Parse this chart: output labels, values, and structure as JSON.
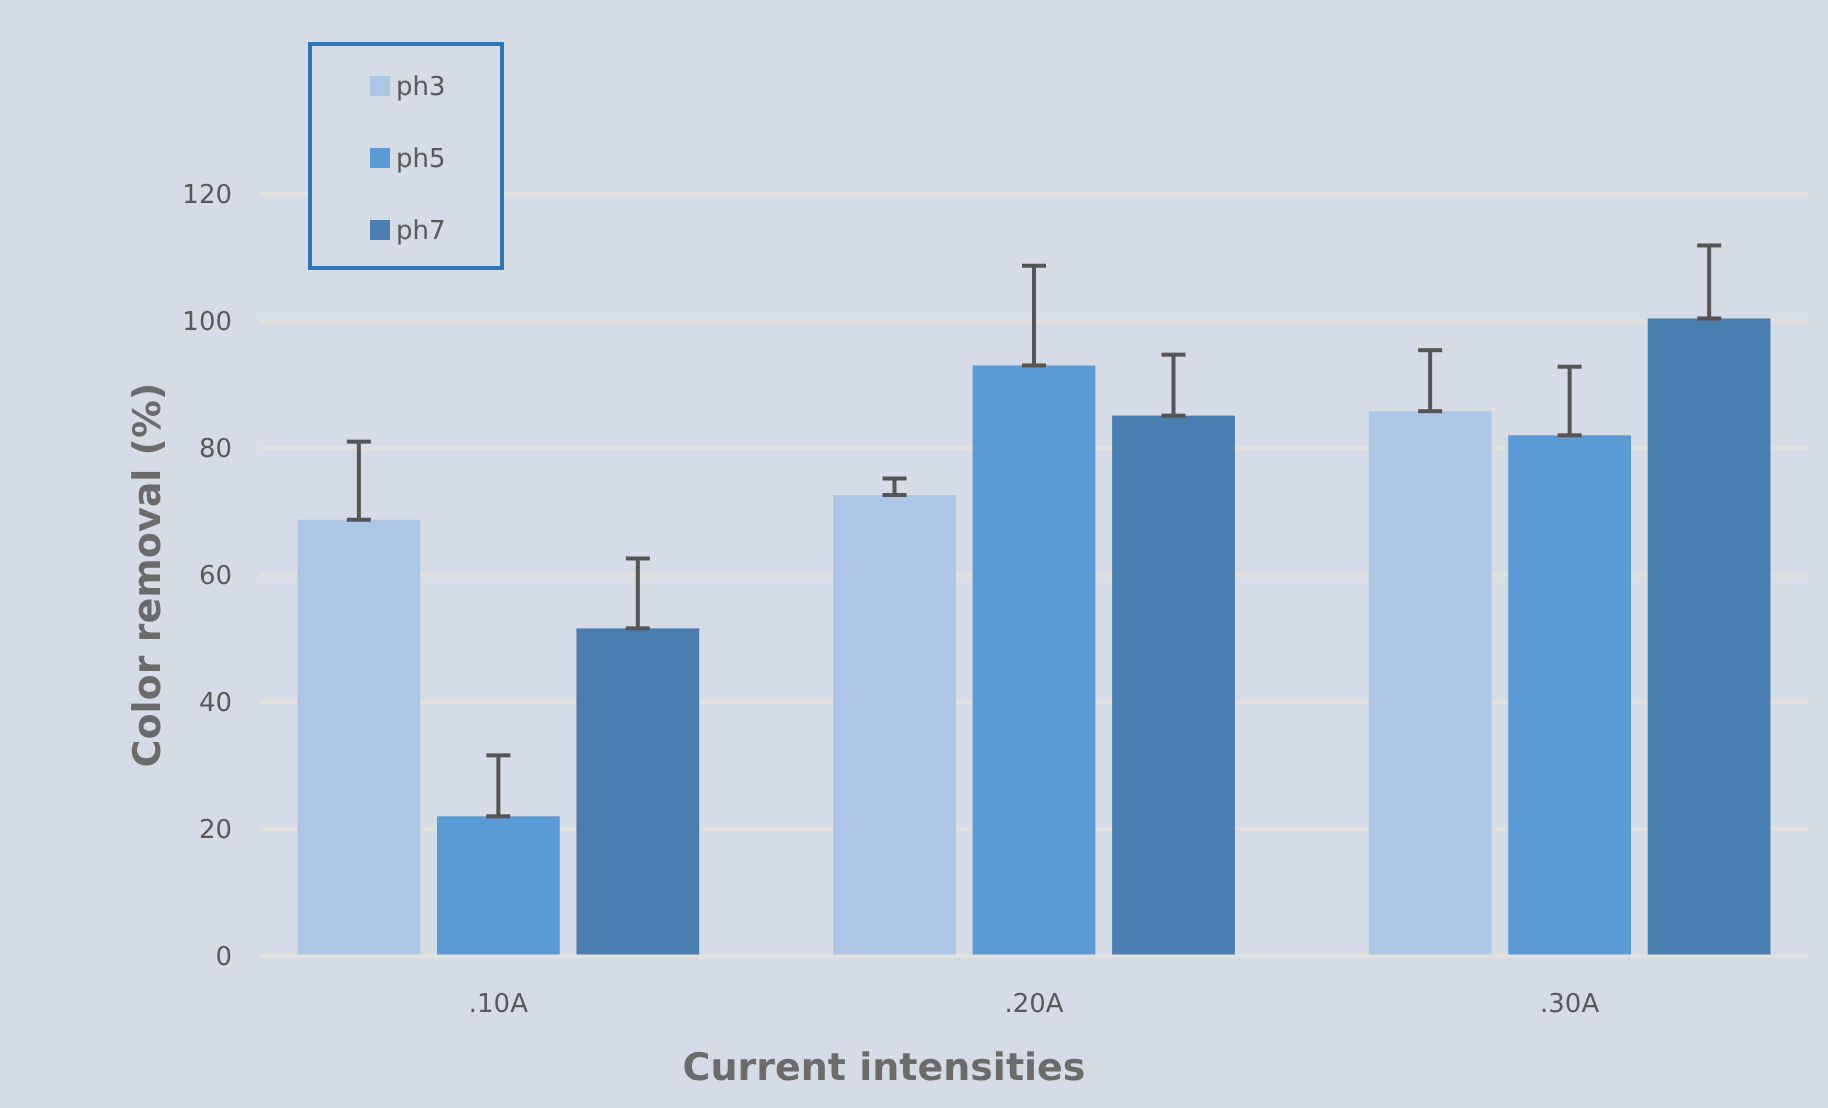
{
  "chart_data": {
    "type": "bar",
    "xlabel": "Current intensities",
    "ylabel": "Color removal (%)",
    "categories": [
      ".10A",
      ".20A",
      ".30A"
    ],
    "series": [
      {
        "name": "ph3",
        "color": "#adc6e5",
        "values": [
          68.7,
          72.6,
          85.8
        ],
        "errors": [
          [
            68.7,
            81
          ],
          [
            72.6,
            75.2
          ],
          [
            85.8,
            95.4
          ]
        ]
      },
      {
        "name": "ph5",
        "color": "#5b9bd5",
        "values": [
          22,
          93,
          82
        ],
        "errors": [
          [
            22,
            31.6
          ],
          [
            93,
            108.7
          ],
          [
            82,
            92.8
          ]
        ]
      },
      {
        "name": "ph7",
        "color": "#4a7eb0",
        "values": [
          51.6,
          85.1,
          100.4
        ],
        "errors": [
          [
            51.6,
            62.6
          ],
          [
            85.1,
            94.7
          ],
          [
            100.4,
            111.9
          ]
        ]
      }
    ],
    "ylim": [
      0,
      120
    ],
    "yticks": [
      0,
      20,
      40,
      60,
      80,
      100,
      120
    ],
    "grid": "y",
    "legend": "top left"
  }
}
